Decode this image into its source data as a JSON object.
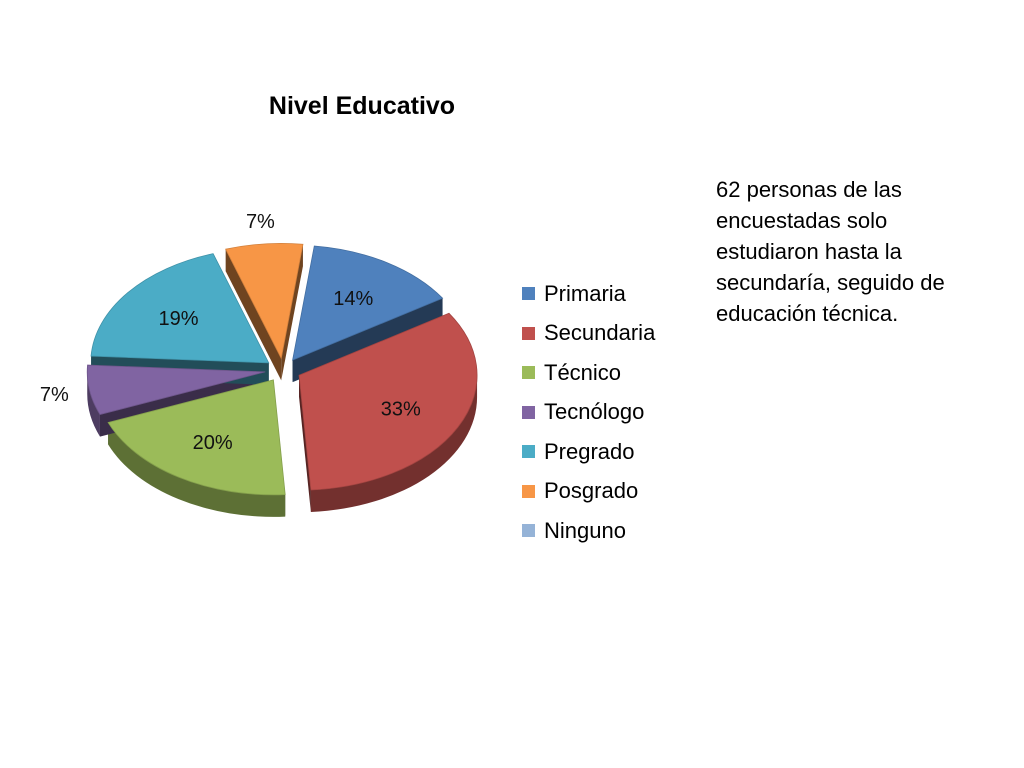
{
  "chart_data": {
    "type": "pie",
    "title": "Nivel Educativo",
    "exploded": true,
    "three_d": true,
    "legend_position": "right",
    "slices": [
      {
        "label": "Primaria",
        "value": 14,
        "value_label": "14%",
        "color": "#4F81BD"
      },
      {
        "label": "Secundaria",
        "value": 33,
        "value_label": "33%",
        "color": "#C0504D"
      },
      {
        "label": "Técnico",
        "value": 20,
        "value_label": "20%",
        "color": "#9BBB59"
      },
      {
        "label": "Tecnólogo",
        "value": 7,
        "value_label": "7%",
        "color": "#8064A2"
      },
      {
        "label": "Pregrado",
        "value": 19,
        "value_label": "19%",
        "color": "#4BACC6"
      },
      {
        "label": "Posgrado",
        "value": 7,
        "value_label": "7%",
        "color": "#F79646"
      },
      {
        "label": "Ninguno",
        "value": 0,
        "value_label": "",
        "color": "#95B3D7"
      }
    ]
  },
  "annotation": "62 personas de las encuestadas solo estudiaron hasta la secundaría, seguido de educación técnica."
}
